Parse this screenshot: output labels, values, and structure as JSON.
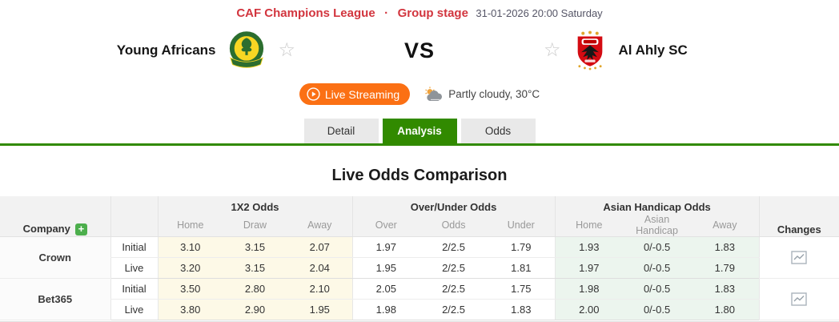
{
  "header": {
    "league": "CAF Champions League",
    "separator": "·",
    "stage": "Group stage",
    "datetime": "31-01-2026 20:00 Saturday"
  },
  "match": {
    "home_team": "Young Africans",
    "away_team": "Al Ahly SC",
    "vs_label": "VS",
    "live_streaming_label": "Live Streaming",
    "weather": "Partly cloudy, 30°C"
  },
  "icons": {
    "favorite_star": "☆",
    "add_company": "+",
    "play": "play-circle-icon",
    "weather": "partly-cloudy-icon",
    "changes": "trend-chart-icon"
  },
  "tabs": [
    {
      "label": "Detail",
      "active": false
    },
    {
      "label": "Analysis",
      "active": true
    },
    {
      "label": "Odds",
      "active": false
    }
  ],
  "section": {
    "title": "Live Odds Comparison"
  },
  "odds_table": {
    "company_header": "Company",
    "changes_header": "Changes",
    "groups": [
      {
        "label": "1X2 Odds",
        "columns": [
          "Home",
          "Draw",
          "Away"
        ]
      },
      {
        "label": "Over/Under Odds",
        "columns": [
          "Over",
          "Odds",
          "Under"
        ]
      },
      {
        "label": "Asian Handicap Odds",
        "columns": [
          "Home",
          "Asian Handicap",
          "Away"
        ]
      }
    ],
    "bookmakers": [
      {
        "name": "Crown",
        "rows": [
          {
            "type": "Initial",
            "x12": [
              "3.10",
              "3.15",
              "2.07"
            ],
            "ou": [
              "1.97",
              "2/2.5",
              "1.79"
            ],
            "ah": [
              "1.93",
              "0/-0.5",
              "1.83"
            ]
          },
          {
            "type": "Live",
            "x12": [
              "3.20",
              "3.15",
              "2.04"
            ],
            "ou": [
              "1.95",
              "2/2.5",
              "1.81"
            ],
            "ah": [
              "1.97",
              "0/-0.5",
              "1.79"
            ]
          }
        ]
      },
      {
        "name": "Bet365",
        "rows": [
          {
            "type": "Initial",
            "x12": [
              "3.50",
              "2.80",
              "2.10"
            ],
            "ou": [
              "2.05",
              "2/2.5",
              "1.75"
            ],
            "ah": [
              "1.98",
              "0/-0.5",
              "1.83"
            ]
          },
          {
            "type": "Live",
            "x12": [
              "3.80",
              "2.90",
              "1.95"
            ],
            "ou": [
              "1.98",
              "2/2.5",
              "1.83"
            ],
            "ah": [
              "2.00",
              "0/-0.5",
              "1.80"
            ]
          }
        ]
      }
    ]
  },
  "colors": {
    "accent_red": "#d2353e",
    "accent_green": "#318a00",
    "accent_orange": "#fb7014",
    "x12_cell_bg": "#fdf9e7",
    "ah_cell_bg": "#ecf5ee",
    "header_bg": "#f2f2f2"
  }
}
